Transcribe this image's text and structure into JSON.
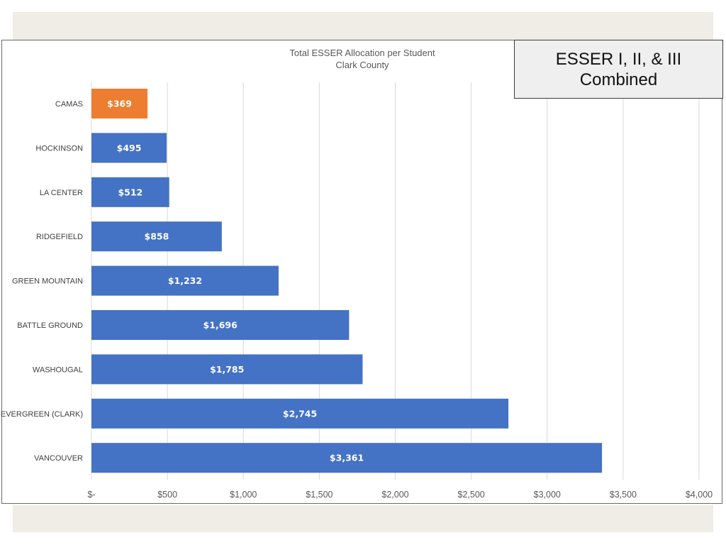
{
  "chart_data": {
    "type": "bar",
    "orientation": "horizontal",
    "title": "Total ESSER Allocation per Student",
    "subtitle": "Clark County",
    "categories": [
      "CAMAS",
      "HOCKINSON",
      "LA CENTER",
      "RIDGEFIELD",
      "GREEN MOUNTAIN",
      "BATTLE GROUND",
      "WASHOUGAL",
      "EVERGREEN (CLARK)",
      "VANCOUVER"
    ],
    "values": [
      369,
      495,
      512,
      858,
      1232,
      1696,
      1785,
      2745,
      3361
    ],
    "data_labels": [
      "$369",
      "$495",
      "$512",
      "$858",
      "$1,232",
      "$1,696",
      "$1,785",
      "$2,745",
      "$3,361"
    ],
    "highlight_category": "CAMAS",
    "xlim": [
      0,
      4000
    ],
    "x_ticks": [
      0,
      500,
      1000,
      1500,
      2000,
      2500,
      3000,
      3500,
      4000
    ],
    "x_tick_labels": [
      "$-",
      "$500",
      "$1,000",
      "$1,500",
      "$2,000",
      "$2,500",
      "$3,000",
      "$3,500",
      "$4,000"
    ],
    "grid": "vertical",
    "legend": "none",
    "colors": {
      "bar": "#4472c4",
      "highlight": "#ed7d31",
      "grid": "#d9d9d9"
    }
  },
  "callout": {
    "line1": "ESSER I, II, & III",
    "line2": "Combined"
  }
}
